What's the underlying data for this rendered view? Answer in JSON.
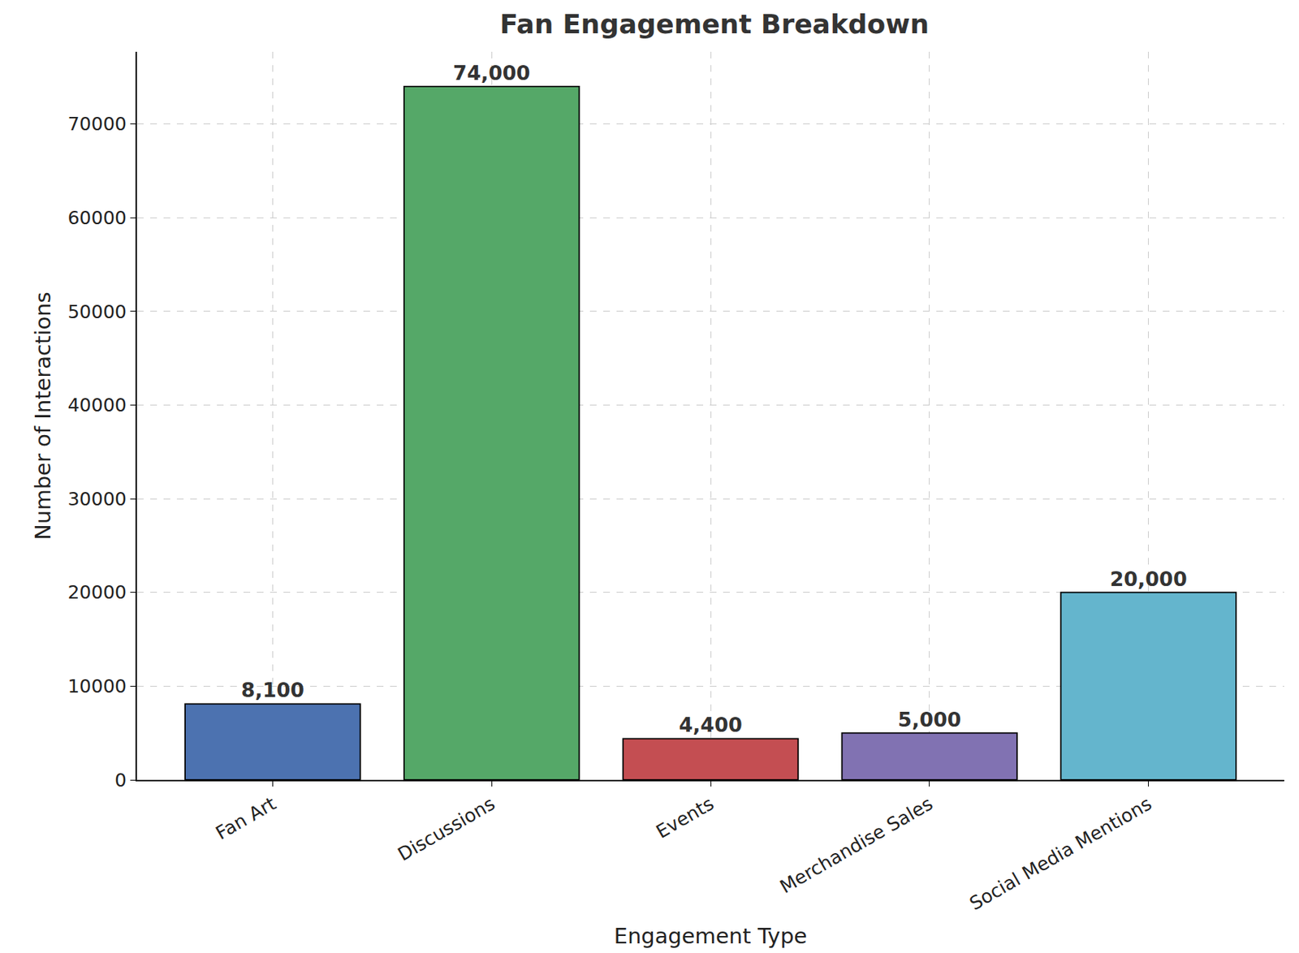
{
  "chart_data": {
    "type": "bar",
    "title": "Fan Engagement Breakdown",
    "x_label": "Engagement Type",
    "y_label": "Number of Interactions",
    "categories": [
      "Fan Art",
      "Discussions",
      "Events",
      "Merchandise Sales",
      "Social Media Mentions"
    ],
    "values": [
      8100,
      74000,
      4400,
      5000,
      20000
    ],
    "value_labels": [
      "8,100",
      "74,000",
      "4,400",
      "5,000",
      "20,000"
    ],
    "colors": [
      "#4c72b0",
      "#55a868",
      "#c44e52",
      "#8172b2",
      "#64b5cd"
    ],
    "ylim": [
      0,
      77700
    ],
    "yticks": [
      0,
      10000,
      20000,
      30000,
      40000,
      50000,
      60000,
      70000
    ],
    "grid": true,
    "data_labels": true
  }
}
